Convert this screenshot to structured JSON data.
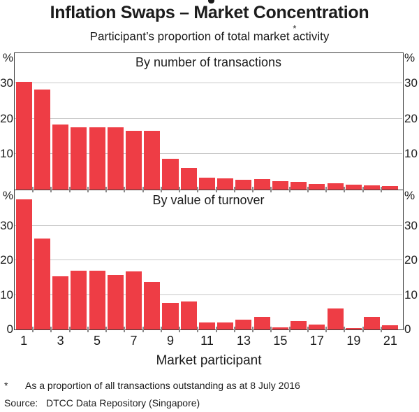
{
  "title": "Inflation Swaps – Market Concentration",
  "subtitle": {
    "prefix": "Participant’s proportion of total market ",
    "marker": "*",
    "suffix": "activity"
  },
  "xaxis": {
    "title": "Market participant",
    "tick_labels": [
      "1",
      "3",
      "5",
      "7",
      "9",
      "11",
      "13",
      "15",
      "17",
      "19",
      "21"
    ]
  },
  "footnote": {
    "marker": "*",
    "text": "As a proportion of all transactions outstanding as at 8 July 2016"
  },
  "source": {
    "label": "Source:",
    "text": "DTCC Data Repository (Singapore)"
  },
  "colors": {
    "bar": "#ee3d45",
    "gridline": "#c8c8c8",
    "axis": "#3d3d3d",
    "tick": "#8a8a8a",
    "text": "#1c1c1c"
  },
  "chart_data": [
    {
      "type": "bar",
      "panel_title": "By number of transactions",
      "unit": "%",
      "x": [
        1,
        2,
        3,
        4,
        5,
        6,
        7,
        8,
        9,
        10,
        11,
        12,
        13,
        14,
        15,
        16,
        17,
        18,
        19,
        20,
        21
      ],
      "values": [
        30.5,
        28.3,
        18.3,
        17.6,
        17.6,
        17.6,
        16.6,
        16.6,
        8.7,
        6.2,
        3.4,
        3.1,
        2.7,
        2.9,
        2.3,
        2.1,
        1.6,
        1.8,
        1.3,
        1.1,
        1.0
      ],
      "ylim": [
        0,
        38.5
      ],
      "yticks": [
        10,
        20,
        30
      ],
      "grid": true,
      "xlabel": "Market participant",
      "ylabel": "%"
    },
    {
      "type": "bar",
      "panel_title": "By value of turnover",
      "unit": "%",
      "x": [
        1,
        2,
        3,
        4,
        5,
        6,
        7,
        8,
        9,
        10,
        11,
        12,
        13,
        14,
        15,
        16,
        17,
        18,
        19,
        20,
        21
      ],
      "values": [
        37.5,
        26.2,
        15.4,
        16.9,
        16.9,
        15.7,
        16.8,
        13.7,
        7.7,
        8.0,
        2.0,
        2.0,
        2.9,
        3.7,
        0.6,
        2.4,
        1.5,
        6.0,
        0.4,
        3.7,
        1.3
      ],
      "ylim": [
        0,
        40
      ],
      "yticks": [
        0,
        10,
        20,
        30
      ],
      "grid": true,
      "xlabel": "Market participant",
      "ylabel": "%"
    }
  ]
}
